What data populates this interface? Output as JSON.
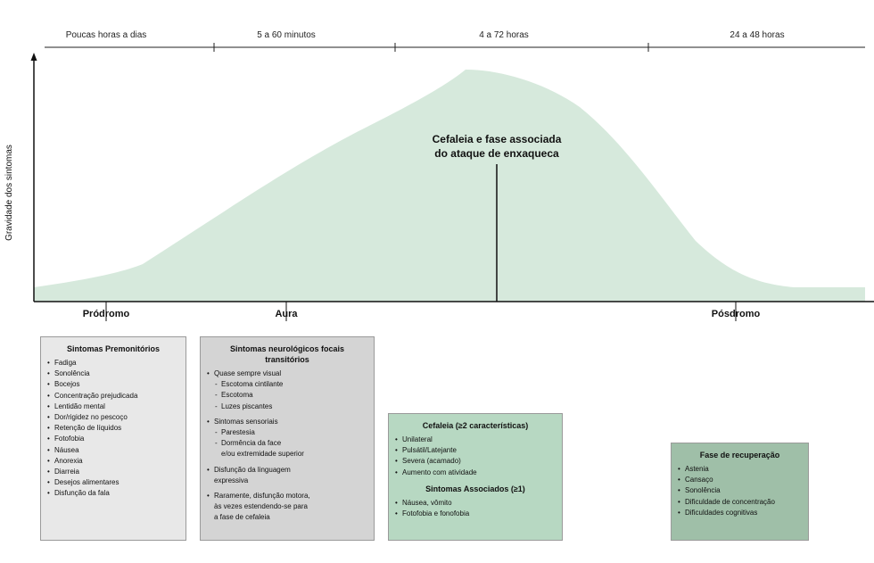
{
  "timeline": {
    "segments": [
      "Poucas horas a dias",
      "5 a 60 minutos",
      "4 a 72 horas",
      "24 a 48 horas"
    ]
  },
  "axis": {
    "ylabel": "Gravidade dos sintomas"
  },
  "curve": {
    "label_line1": "Cefaleia e fase associada",
    "label_line2": "do ataque de enxaqueca",
    "color": "#d6e9dc"
  },
  "phases": [
    "Pródromo",
    "Aura",
    "Pósdromo"
  ],
  "boxes": {
    "premonitory": {
      "title": "Sintomas Premonitórios",
      "color": "#e8e8e8",
      "items": [
        "Fadiga",
        "Sonolência",
        "Bocejos",
        "Concentração prejudicada",
        "Lentidão mental",
        "Dor/rigidez no pescoço",
        "Retenção de líquidos",
        "Fotofobia",
        "Náusea",
        "Anorexia",
        "Diarreia",
        "Desejos alimentares",
        "Disfunção da fala"
      ]
    },
    "aura": {
      "title_line1": "Sintomas neurológicos focais",
      "title_line2": "transitórios",
      "color": "#d4d4d4",
      "visual": "Quase sempre visual",
      "visual_sub": [
        "Escotoma cintilante",
        "Escotoma",
        "Luzes piscantes"
      ],
      "sensory": "Sintomas sensoriais",
      "sensory_sub1": "Parestesia",
      "sensory_sub2": "Dormência da face",
      "sensory_sub2_cont": "e/ou extremidade superior",
      "language1": "Disfunção da linguagem",
      "language2": "expressiva",
      "motor1": "Raramente, disfunção motora,",
      "motor2": "às vezes estendendo-se para",
      "motor3": "a fase de cefaleia"
    },
    "headache": {
      "title": "Cefaleia (≥2 características)",
      "color": "#b7d8c2",
      "items": [
        "Unilateral",
        "Pulsátil/Latejante",
        "Severa (acamado)",
        "Aumento com atividade"
      ],
      "assoc_title": "Sintomas Associados (≥1)",
      "assoc_items": [
        "Náusea, vômito",
        "Fotofobia e fonofobia"
      ]
    },
    "recovery": {
      "title": "Fase de recuperação",
      "color": "#9fbfa8",
      "items": [
        "Astenia",
        "Cansaço",
        "Sonolência",
        "Dificuldade de concentração",
        "Dificuldades cognitivas"
      ]
    }
  }
}
